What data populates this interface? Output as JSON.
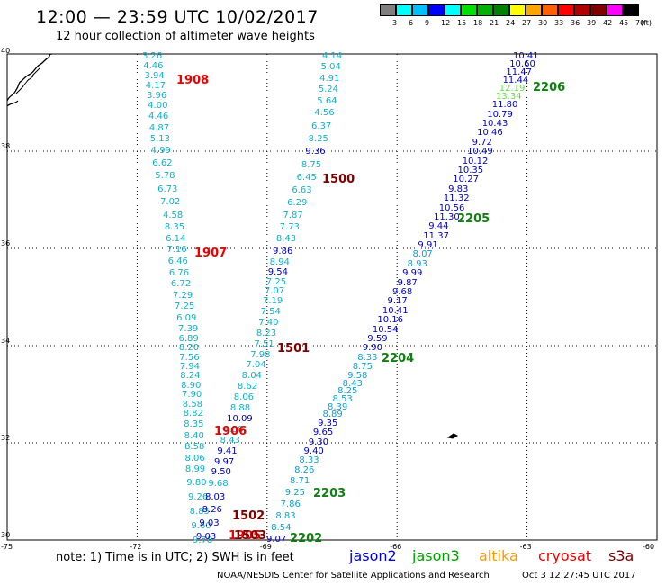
{
  "header": {
    "title": "12:00 — 23:59 UTC 10/02/2017",
    "subtitle": "12 hour collection of altimeter wave heights"
  },
  "legend": {
    "unit": "(ft)",
    "labels": [
      "3",
      "6",
      "9",
      "12",
      "15",
      "18",
      "21",
      "24",
      "27",
      "30",
      "33",
      "36",
      "39",
      "42",
      "45",
      "70"
    ],
    "colors": [
      "#7f7f7f",
      "#00ffff",
      "#00bfff",
      "#0000ff",
      "#00ffff",
      "#00e000",
      "#00b000",
      "#008000",
      "#ffff00",
      "#ffa500",
      "#ff6000",
      "#ff0000",
      "#b00000",
      "#800000",
      "#ff00ff",
      "#000000"
    ]
  },
  "axes": {
    "lat_labels": [
      "40",
      "38",
      "36",
      "34",
      "32",
      "30"
    ],
    "lon_labels": [
      "-75",
      "-72",
      "-69",
      "-66",
      "-63",
      "-60"
    ]
  },
  "tracks": {
    "cyan_west": {
      "color": "#10b0cc",
      "values": [
        "3.26",
        "4.46",
        "3.94",
        "4.17",
        "3.96",
        "4.00",
        "4.46",
        "4.87",
        "5.13",
        "4.99",
        "6.62",
        "5.78",
        "6.73",
        "7.02",
        "4.58",
        "8.35",
        "6.14",
        "7.16",
        "6.46",
        "6.76",
        "6.72",
        "7.29",
        "7.25",
        "6.09",
        "7.39",
        "6.89",
        "8.20",
        "7.56",
        "7.94",
        "8.24",
        "8.90",
        "7.90",
        "8.58",
        "8.82",
        "8.35",
        "8.40",
        "8.58",
        "8.06",
        "8.99",
        "9.80",
        "9.26",
        "8.85",
        "9.60",
        "9.78"
      ]
    },
    "middle": {
      "values": [
        "4.14",
        "5.04",
        "4.91",
        "5.24",
        "5.64",
        "4.56",
        "6.37",
        "8.25",
        "9.36",
        "8.75",
        "6.45",
        "6.63",
        "6.29",
        "7.87",
        "7.73",
        "8.43",
        "9.86",
        "8.94",
        "9.54",
        "7.25",
        "7.07",
        "7.19",
        "7.54",
        "7.40",
        "8.23",
        "7.51",
        "7.98",
        "7.04",
        "8.04",
        "8.62",
        "8.06",
        "8.88",
        "10.09",
        "8.58",
        "8.43",
        "9.41",
        "9.97",
        "9.50",
        "9.68",
        "8.03",
        "8.26",
        "9.03",
        "9.03"
      ],
      "dark_indexes": [
        8,
        16,
        18,
        32,
        35,
        36,
        37,
        39,
        40,
        41,
        42
      ]
    },
    "blue_east": {
      "color": "#0000c8",
      "values": [
        "10.41",
        "10.60",
        "11.47",
        "11.44",
        "12.19",
        "13.34",
        "11.80",
        "10.79",
        "10.43",
        "10.46",
        "9.72",
        "10.49",
        "10.12",
        "10.35",
        "10.27",
        "9.83",
        "11.32",
        "10.56",
        "11.30",
        "9.44",
        "11.37",
        "9.91",
        "8.07",
        "8.93",
        "9.99",
        "9.87",
        "9.68",
        "9.17",
        "10.41",
        "10.16",
        "10.54",
        "9.59",
        "9.90",
        "8.33",
        "8.75",
        "9.58",
        "8.43",
        "8.25",
        "8.53",
        "8.39",
        "8.89",
        "9.35",
        "9.65",
        "9.30",
        "9.40",
        "8.33",
        "8.26",
        "8.71",
        "9.25",
        "7.86",
        "8.83",
        "8.54",
        "9.07"
      ],
      "light_green_indexes": [
        4,
        5
      ],
      "cyan_indexes": [
        22,
        23,
        33,
        34,
        35,
        36,
        37,
        38,
        39,
        40,
        45,
        46,
        47,
        48,
        49,
        50,
        51
      ]
    }
  },
  "pass_labels": [
    {
      "text": "1908",
      "color": "#ee0000"
    },
    {
      "text": "1907",
      "color": "#ee0000"
    },
    {
      "text": "1906",
      "color": "#ee0000"
    },
    {
      "text": "1905",
      "color": "#ee0000"
    },
    {
      "text": "1500",
      "color": "#800000"
    },
    {
      "text": "1501",
      "color": "#800000"
    },
    {
      "text": "1502",
      "color": "#800000"
    },
    {
      "text": "1503",
      "color": "#800000"
    },
    {
      "text": "2206",
      "color": "#108010"
    },
    {
      "text": "2205",
      "color": "#108010"
    },
    {
      "text": "2204",
      "color": "#108010"
    },
    {
      "text": "2203",
      "color": "#108010"
    },
    {
      "text": "2202",
      "color": "#108010"
    }
  ],
  "footer": {
    "note": "note:  1) Time is in UTC;  2) SWH is in feet",
    "satellites": [
      {
        "name": "jason2",
        "color": "#0000dd"
      },
      {
        "name": "jason3",
        "color": "#00a000"
      },
      {
        "name": "altika",
        "color": "#ff9900"
      },
      {
        "name": "cryosat",
        "color": "#ee0000"
      },
      {
        "name": "s3a",
        "color": "#800000"
      }
    ],
    "credit": "NOAA/NESDIS Center for Satellite Applications and Research",
    "timestamp": "Oct  3 12:27:45 UTC 2017"
  }
}
